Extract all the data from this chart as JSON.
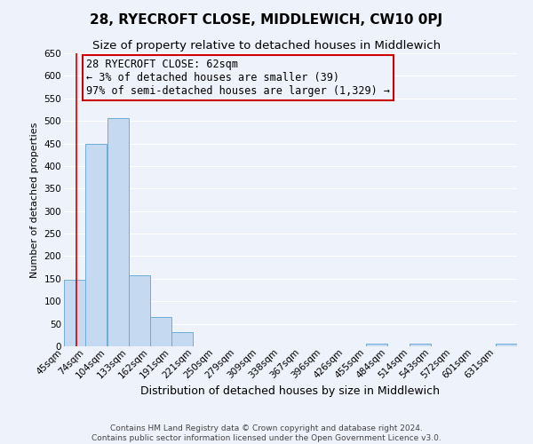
{
  "title": "28, RYECROFT CLOSE, MIDDLEWICH, CW10 0PJ",
  "subtitle": "Size of property relative to detached houses in Middlewich",
  "xlabel": "Distribution of detached houses by size in Middlewich",
  "ylabel": "Number of detached properties",
  "bin_labels": [
    "45sqm",
    "74sqm",
    "104sqm",
    "133sqm",
    "162sqm",
    "191sqm",
    "221sqm",
    "250sqm",
    "279sqm",
    "309sqm",
    "338sqm",
    "367sqm",
    "396sqm",
    "426sqm",
    "455sqm",
    "484sqm",
    "514sqm",
    "543sqm",
    "572sqm",
    "601sqm",
    "631sqm"
  ],
  "bar_heights": [
    148,
    450,
    507,
    157,
    65,
    32,
    0,
    0,
    0,
    0,
    0,
    0,
    0,
    0,
    5,
    0,
    5,
    0,
    0,
    0,
    5
  ],
  "bar_color": "#c5d9f0",
  "bar_edge_color": "#6baed6",
  "property_line_x": 62,
  "property_line_color": "#cc0000",
  "annotation_line1": "28 RYECROFT CLOSE: 62sqm",
  "annotation_line2": "← 3% of detached houses are smaller (39)",
  "annotation_line3": "97% of semi-detached houses are larger (1,329) →",
  "annotation_box_color": "#cc0000",
  "ylim": [
    0,
    650
  ],
  "yticks": [
    0,
    50,
    100,
    150,
    200,
    250,
    300,
    350,
    400,
    450,
    500,
    550,
    600,
    650
  ],
  "footer_line1": "Contains HM Land Registry data © Crown copyright and database right 2024.",
  "footer_line2": "Contains public sector information licensed under the Open Government Licence v3.0.",
  "bg_color": "#eef2fa",
  "grid_color": "#ffffff",
  "title_fontsize": 11,
  "subtitle_fontsize": 9.5,
  "xlabel_fontsize": 9,
  "ylabel_fontsize": 8,
  "tick_fontsize": 7.5,
  "annotation_fontsize": 8.5,
  "footer_fontsize": 6.5
}
